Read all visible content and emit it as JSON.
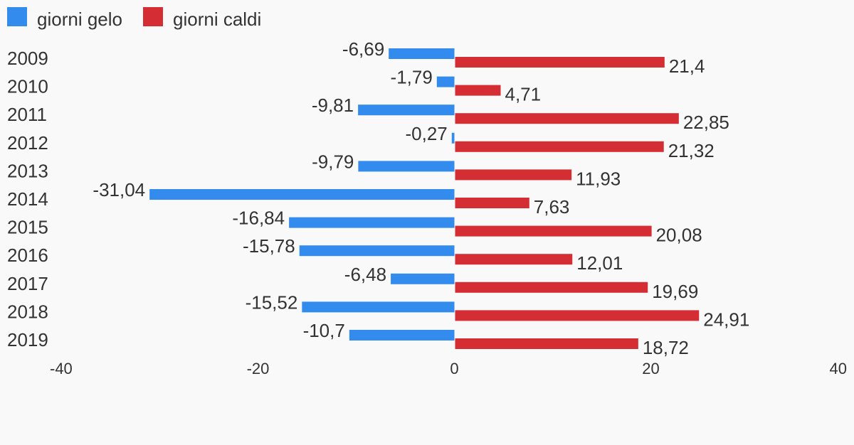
{
  "chart_data": {
    "type": "bar",
    "orientation": "horizontal",
    "categories": [
      "2009",
      "2010",
      "2011",
      "2012",
      "2013",
      "2014",
      "2015",
      "2016",
      "2017",
      "2018",
      "2019"
    ],
    "series": [
      {
        "name": "giorni gelo",
        "color": "#338ced",
        "values": [
          -6.69,
          -1.79,
          -9.81,
          -0.27,
          -9.79,
          -31.04,
          -16.84,
          -15.78,
          -6.48,
          -15.52,
          -10.7
        ],
        "labels": [
          "-6,69",
          "-1,79",
          "-9,81",
          "-0,27",
          "-9,79",
          "-31,04",
          "-16,84",
          "-15,78",
          "-6,48",
          "-15,52",
          "-10,7"
        ]
      },
      {
        "name": "giorni caldi",
        "color": "#d42d34",
        "values": [
          21.4,
          4.71,
          22.85,
          21.32,
          11.93,
          7.63,
          20.08,
          12.01,
          19.69,
          24.91,
          18.72
        ],
        "labels": [
          "21,4",
          "4,71",
          "22,85",
          "21,32",
          "11,93",
          "7,63",
          "20,08",
          "12,01",
          "19,69",
          "24,91",
          "18,72"
        ]
      }
    ],
    "xlim": [
      -40,
      40
    ],
    "xticks": [
      "-40",
      "-20",
      "0",
      "20",
      "40"
    ],
    "grid": false,
    "legend_position": "top-left"
  }
}
